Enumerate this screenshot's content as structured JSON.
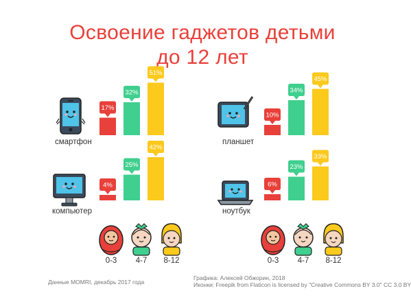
{
  "title": {
    "line1": "Освоение гаджетов детьми",
    "line2": "до 12 лет"
  },
  "colors": {
    "title": "#e8403a",
    "age_0_3": "#e8403a",
    "age_4_7": "#3fcf8e",
    "age_8_12": "#fcc91d"
  },
  "chart_data": [
    {
      "type": "bar",
      "title": "смартфон",
      "icon": "smartphone-icon",
      "categories": [
        "0-3",
        "4-7",
        "8-12"
      ],
      "values": [
        17,
        32,
        51
      ],
      "labels": [
        "17%",
        "32%",
        "51%"
      ]
    },
    {
      "type": "bar",
      "title": "планшет",
      "icon": "tablet-icon",
      "categories": [
        "0-3",
        "4-7",
        "8-12"
      ],
      "values": [
        10,
        34,
        45
      ],
      "labels": [
        "10%",
        "34%",
        "45%"
      ]
    },
    {
      "type": "bar",
      "title": "компьютер",
      "icon": "computer-icon",
      "categories": [
        "0-3",
        "4-7",
        "8-12"
      ],
      "values": [
        4,
        25,
        42
      ],
      "labels": [
        "4%",
        "25%",
        "42%"
      ]
    },
    {
      "type": "bar",
      "title": "ноутбук",
      "icon": "laptop-icon",
      "categories": [
        "0-3",
        "4-7",
        "8-12"
      ],
      "values": [
        6,
        23,
        33
      ],
      "labels": [
        "6%",
        "23%",
        "33%"
      ]
    }
  ],
  "age_groups": [
    "0-3",
    "4-7",
    "8-12"
  ],
  "footer": {
    "source": "Данные MOMRI, декабрь 2017 года",
    "credit_line1": "Графика: Алексей Обжорин, 2018",
    "credit_line2": "Иконки: Freepik  from Flaticon  is licensed by \"Creative Commons BY 3.0\" CC 3.0 BY"
  }
}
